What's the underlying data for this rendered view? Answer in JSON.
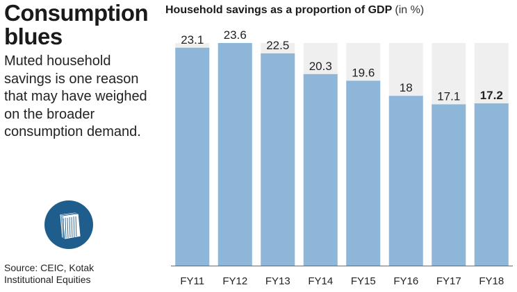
{
  "headline": {
    "line1": "Consumption",
    "line2": "blues"
  },
  "description": "Muted household savings is one reason that may have weighed on the broader consumption demand.",
  "source": {
    "line1": "Source: CEIC, Kotak",
    "line2": "Institutional Equities"
  },
  "icon": "stack-of-papers-icon",
  "colors": {
    "bar": "#8eb6d9",
    "bar_bg": "#efefef",
    "text": "#222222"
  },
  "chart_data": {
    "type": "bar",
    "title": "Household savings as a proportion of GDP",
    "unit_label": "(in %)",
    "categories": [
      "FY11",
      "FY12",
      "FY13",
      "FY14",
      "FY15",
      "FY16",
      "FY17",
      "FY18"
    ],
    "values": [
      23.1,
      23.6,
      22.5,
      20.3,
      19.6,
      18,
      17.1,
      17.2
    ],
    "value_labels": [
      "23.1",
      "23.6",
      "22.5",
      "20.3",
      "19.6",
      "18",
      "17.1",
      "17.2"
    ],
    "highlight_index": 7,
    "xlabel": "",
    "ylabel": "",
    "ylim": [
      0,
      23.6
    ],
    "grid": false
  }
}
